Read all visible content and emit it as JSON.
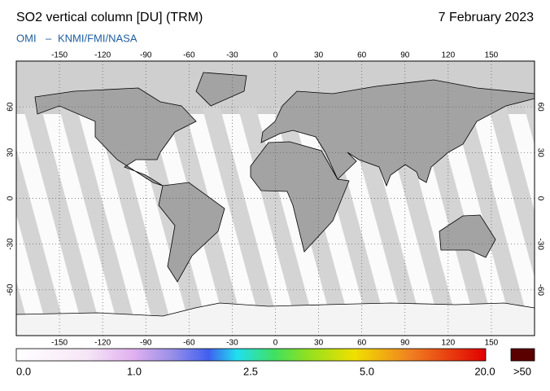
{
  "header": {
    "title": "SO2 vertical column [DU] (TRM)",
    "date": "7 February 2023",
    "source_left": "OMI",
    "source_right": "KNMI/FMI/NASA"
  },
  "map": {
    "xlim": [
      -180,
      180
    ],
    "ylim": [
      -90,
      90
    ],
    "lon_ticks": [
      -150,
      -120,
      -90,
      -60,
      -30,
      0,
      30,
      60,
      90,
      120,
      150
    ],
    "lat_ticks": [
      60,
      30,
      0,
      -30,
      -60
    ]
  },
  "colorbar": {
    "labels": [
      "0.0",
      "1.0",
      "2.5",
      "5.0",
      "20.0"
    ],
    "overflow_label": ">50"
  }
}
